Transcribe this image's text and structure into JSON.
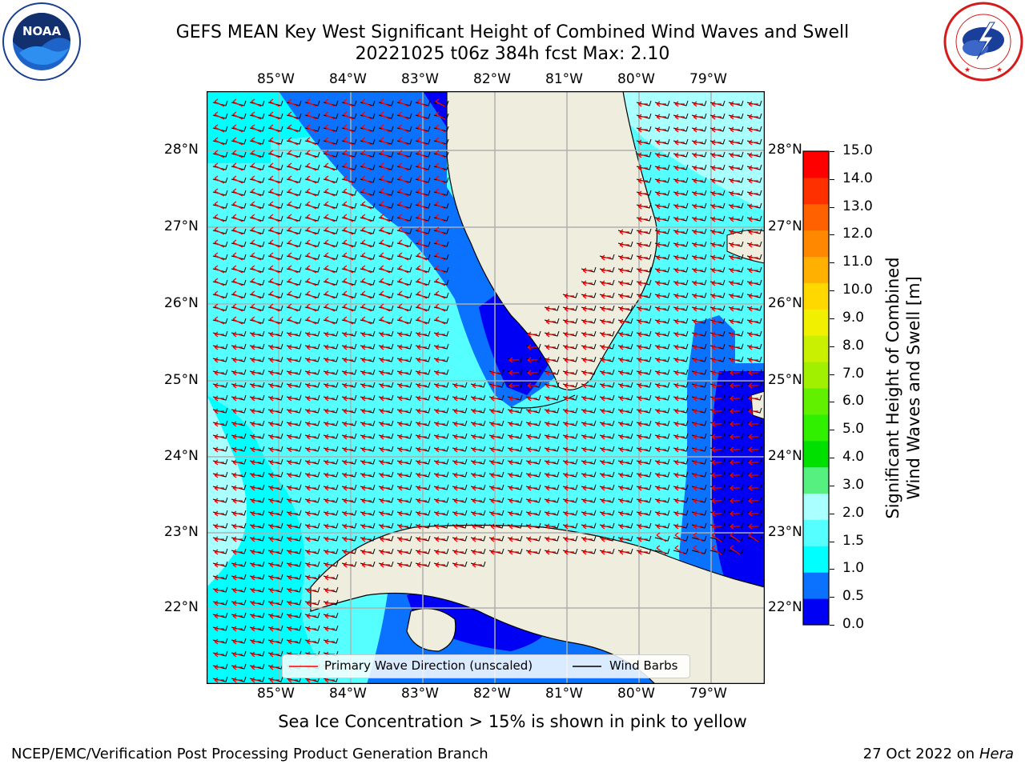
{
  "header": {
    "title_line1": "GEFS MEAN Key West Significant Height of Combined Wind Waves and Swell",
    "title_line2": "20221025 t06z 384h fcst   Max: 2.10"
  },
  "logos": {
    "left": "NOAA",
    "left_ring_text": "NATIONAL OCEANIC AND ATMOSPHERIC ADMINISTRATION · U.S. DEPARTMENT OF COMMERCE",
    "right_ring_text": "NATIONAL WEATHER SERVICE"
  },
  "map": {
    "lon_labels": [
      "85°W",
      "84°W",
      "83°W",
      "82°W",
      "81°W",
      "80°W",
      "79°W"
    ],
    "lat_labels": [
      "28°N",
      "27°N",
      "26°N",
      "25°N",
      "24°N",
      "23°N",
      "22°N"
    ],
    "colors": {
      "land": "#efedde",
      "sea_0_0_5": "#0000f5",
      "sea_0_5_1": "#0a72ff",
      "sea_1_1_5": "#00ffff",
      "sea_1_5_2": "#55ffff",
      "sea_2_3": "#aaffff",
      "grid": "#b0b0b0",
      "wave_arrow": "#ff0000",
      "barb": "#000000"
    }
  },
  "legend": {
    "primary_wave": "Primary Wave Direction (unscaled)",
    "wind_barbs": "Wind Barbs"
  },
  "colorbar": {
    "label_line1": "Significant Height of Combined",
    "label_line2": "Wind Waves and Swell [m]",
    "ticks": [
      "15.0",
      "14.0",
      "13.0",
      "12.0",
      "11.0",
      "10.0",
      "9.0",
      "8.0",
      "7.0",
      "6.0",
      "5.0",
      "4.0",
      "3.0",
      "2.0",
      "1.5",
      "1.0",
      "0.5",
      "0.0"
    ],
    "colors": [
      "#0000f5",
      "#0a72ff",
      "#00ffff",
      "#55ffff",
      "#aaffff",
      "#55f080",
      "#00e000",
      "#30f000",
      "#60f000",
      "#a0f000",
      "#c8f000",
      "#f0f000",
      "#ffd800",
      "#ffb000",
      "#ff8800",
      "#ff6000",
      "#ff3000",
      "#ff0000"
    ]
  },
  "notes": {
    "sea_ice": "Sea Ice Concentration > 15% is shown in pink to yellow",
    "footer_left": "NCEP/EMC/Verification Post Processing Product Generation Branch",
    "footer_right_prefix": "27 Oct 2022 on ",
    "footer_right_machine": "Hera"
  }
}
